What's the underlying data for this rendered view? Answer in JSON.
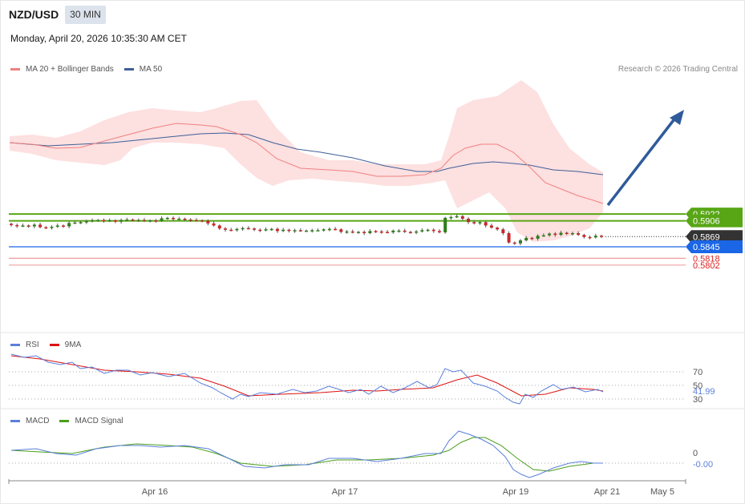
{
  "header": {
    "symbol": "NZD/USD",
    "timeframe": "30 MIN",
    "datetime": "Monday, April 20, 2026 10:35:30 AM CET"
  },
  "legend_main": [
    {
      "label": "MA 20 + Bollinger Bands",
      "color": "#f08080"
    },
    {
      "label": "MA 50",
      "color": "#3d5f97"
    }
  ],
  "copyright": "Research © 2026 Trading Central",
  "legend_rsi": [
    {
      "label": "RSI",
      "color": "#5b7fdb"
    },
    {
      "label": "9MA",
      "color": "#dd1111"
    }
  ],
  "legend_macd": [
    {
      "label": "MACD",
      "color": "#5b7fdb"
    },
    {
      "label": "MACD Signal",
      "color": "#4a9e1a"
    }
  ],
  "levels": {
    "resistance_2": {
      "label": "0.5922",
      "value": 0.5922,
      "color": "#58a616"
    },
    "resistance_1": {
      "label": "0.5906",
      "value": 0.5906,
      "color": "#58a616"
    },
    "last_price": {
      "label": "0.5869",
      "value": 0.5869,
      "color": "#333333"
    },
    "pivot": {
      "label": "0.5845",
      "value": 0.5845,
      "color": "#1a66e6"
    },
    "support_1": {
      "label": "0.5818",
      "value": 0.5818,
      "color": "#dd2222"
    },
    "support_2": {
      "label": "0.5802",
      "value": 0.5802,
      "color": "#dd2222"
    }
  },
  "rsi_panel": {
    "levels": [
      {
        "label": "70",
        "value": 70
      },
      {
        "label": "50",
        "value": 50
      },
      {
        "label": "30",
        "value": 30
      }
    ],
    "current": "41.99"
  },
  "macd_panel": {
    "zero": "0",
    "current": "-0.00"
  },
  "x_axis": [
    "Apr 16",
    "Apr 17",
    "Apr 19",
    "Apr 21",
    "May 5"
  ],
  "chart_data": {
    "type": "candlestick",
    "price_series_close": [
      0.5896,
      0.5894,
      0.5895,
      0.5893,
      0.5897,
      0.5891,
      0.589,
      0.5892,
      0.5895,
      0.5893,
      0.5901,
      0.5902,
      0.5903,
      0.5905,
      0.5907,
      0.5908,
      0.5906,
      0.5907,
      0.5904,
      0.5908,
      0.5909,
      0.5908,
      0.5908,
      0.5906,
      0.5907,
      0.5906,
      0.5912,
      0.5913,
      0.591,
      0.5911,
      0.5909,
      0.5908,
      0.5907,
      0.5906,
      0.59,
      0.5895,
      0.5888,
      0.5885,
      0.5884,
      0.5887,
      0.5889,
      0.5888,
      0.5885,
      0.5884,
      0.5886,
      0.5887,
      0.5882,
      0.5885,
      0.5882,
      0.5884,
      0.5883,
      0.5883,
      0.5884,
      0.5884,
      0.5886,
      0.5887,
      0.5886,
      0.588,
      0.5881,
      0.5879,
      0.588,
      0.5877,
      0.5882,
      0.5881,
      0.588,
      0.5879,
      0.5883,
      0.5883,
      0.588,
      0.5879,
      0.5881,
      0.5884,
      0.5885,
      0.5882,
      0.5879,
      0.5913,
      0.5915,
      0.5917,
      0.5911,
      0.5903,
      0.59,
      0.5903,
      0.5895,
      0.589,
      0.5886,
      0.5877,
      0.5855,
      0.5853,
      0.586,
      0.5866,
      0.5864,
      0.5871,
      0.5872,
      0.5876,
      0.5873,
      0.5878,
      0.5876,
      0.5877,
      0.5873,
      0.5868,
      0.5867,
      0.5871,
      0.5869
    ],
    "ma20": "bollinger midline (estimated)",
    "y_range": [
      0.5795,
      0.5935
    ]
  }
}
